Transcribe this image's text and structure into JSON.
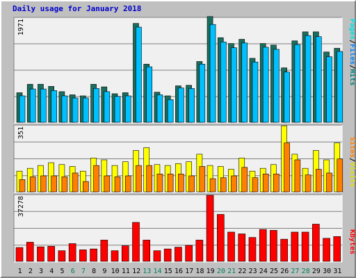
{
  "title": "Daily usage for January 2018",
  "chart_data": [
    {
      "type": "bar",
      "panel": "pages-files-hits",
      "max_label": "1971",
      "ylim": [
        0,
        1971
      ],
      "grid": true,
      "legend": [
        "Pages",
        "/",
        "Files",
        "/",
        "Hits"
      ],
      "legend_colors": {
        "Pages": "#00e0e0",
        "Files": "#0080ff",
        "Hits": "#008080",
        "slash": "#000000"
      },
      "categories": [
        "1",
        "2",
        "3",
        "4",
        "5",
        "6",
        "7",
        "8",
        "9",
        "10",
        "11",
        "12",
        "13",
        "14",
        "15",
        "16",
        "17",
        "18",
        "19",
        "20",
        "21",
        "22",
        "23",
        "24",
        "25",
        "26",
        "27",
        "28",
        "29",
        "30",
        "31"
      ],
      "series": [
        {
          "name": "Hits",
          "color": "#1a6e5e",
          "values": [
            560,
            720,
            720,
            680,
            580,
            520,
            500,
            720,
            670,
            540,
            560,
            1870,
            1100,
            570,
            500,
            690,
            700,
            1150,
            2000,
            1600,
            1490,
            1570,
            1210,
            1490,
            1460,
            1030,
            1540,
            1710,
            1710,
            1330,
            1400
          ]
        },
        {
          "name": "Files",
          "color": "#00c0ff",
          "values": [
            500,
            630,
            630,
            600,
            500,
            460,
            460,
            640,
            580,
            490,
            500,
            1800,
            1050,
            520,
            430,
            650,
            640,
            1100,
            1850,
            1520,
            1410,
            1500,
            1140,
            1420,
            1380,
            950,
            1470,
            1640,
            1620,
            1240,
            1340
          ]
        }
      ]
    },
    {
      "type": "bar",
      "panel": "sites-visits",
      "max_label": "351",
      "ylim": [
        0,
        351
      ],
      "grid": true,
      "legend": [
        "Sites",
        "/",
        "Visits"
      ],
      "legend_colors": {
        "Sites": "#ff8000",
        "Visits": "#ffff00",
        "slash": "#000000"
      },
      "categories": [
        "1",
        "2",
        "3",
        "4",
        "5",
        "6",
        "7",
        "8",
        "9",
        "10",
        "11",
        "12",
        "13",
        "14",
        "15",
        "16",
        "17",
        "18",
        "19",
        "20",
        "21",
        "22",
        "23",
        "24",
        "25",
        "26",
        "27",
        "28",
        "29",
        "30",
        "31"
      ],
      "series": [
        {
          "name": "Visits",
          "color": "#ffff00",
          "values": [
            110,
            125,
            140,
            155,
            145,
            135,
            110,
            180,
            170,
            140,
            160,
            220,
            235,
            145,
            140,
            150,
            160,
            200,
            140,
            135,
            120,
            180,
            110,
            125,
            145,
            351,
            200,
            125,
            220,
            170,
            260
          ]
        },
        {
          "name": "Sites",
          "color": "#ff8000",
          "values": [
            65,
            80,
            85,
            85,
            80,
            100,
            55,
            140,
            85,
            80,
            85,
            140,
            140,
            95,
            95,
            95,
            85,
            135,
            70,
            75,
            85,
            130,
            75,
            95,
            95,
            260,
            170,
            90,
            120,
            100,
            175
          ]
        }
      ]
    },
    {
      "type": "bar",
      "panel": "kbytes",
      "max_label": "37278",
      "ylim": [
        0,
        37278
      ],
      "grid": true,
      "legend": [
        "KBytes"
      ],
      "legend_colors": {
        "KBytes": "#ff0000"
      },
      "categories": [
        "1",
        "2",
        "3",
        "4",
        "5",
        "6",
        "7",
        "8",
        "9",
        "10",
        "11",
        "12",
        "13",
        "14",
        "15",
        "16",
        "17",
        "18",
        "19",
        "20",
        "21",
        "22",
        "23",
        "24",
        "25",
        "26",
        "27",
        "28",
        "29",
        "30",
        "31"
      ],
      "series": [
        {
          "name": "KBytes",
          "color": "#ff0000",
          "values": [
            7800,
            10800,
            8200,
            8500,
            6000,
            10000,
            6500,
            7000,
            12000,
            6000,
            8800,
            22000,
            12000,
            6000,
            7000,
            8000,
            9000,
            12000,
            37278,
            26500,
            16500,
            15500,
            13500,
            18000,
            17500,
            12500,
            16500,
            16500,
            21000,
            13000,
            14000
          ]
        }
      ]
    }
  ],
  "weekend_days": [
    "6",
    "7",
    "13",
    "14",
    "20",
    "21",
    "27",
    "28"
  ],
  "colors": {
    "title": "#0000cc",
    "weekday_label": "#000000",
    "weekend_label": "#00805f",
    "panel_bg": "#f0f0f0",
    "grid": "#808080"
  }
}
